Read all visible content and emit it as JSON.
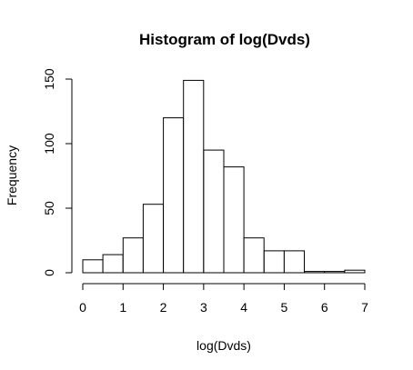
{
  "chart_data": {
    "type": "bar",
    "title": "Histogram of log(Dvds)",
    "xlabel": "log(Dvds)",
    "ylabel": "Frequency",
    "xlim": [
      0,
      7
    ],
    "ylim": [
      0,
      150
    ],
    "bin_width": 0.5,
    "bins": [
      {
        "start": 0.0,
        "end": 0.5,
        "count": 10
      },
      {
        "start": 0.5,
        "end": 1.0,
        "count": 14
      },
      {
        "start": 1.0,
        "end": 1.5,
        "count": 27
      },
      {
        "start": 1.5,
        "end": 2.0,
        "count": 53
      },
      {
        "start": 2.0,
        "end": 2.5,
        "count": 120
      },
      {
        "start": 2.5,
        "end": 3.0,
        "count": 149
      },
      {
        "start": 3.0,
        "end": 3.5,
        "count": 95
      },
      {
        "start": 3.5,
        "end": 4.0,
        "count": 82
      },
      {
        "start": 4.0,
        "end": 4.5,
        "count": 27
      },
      {
        "start": 4.5,
        "end": 5.0,
        "count": 17
      },
      {
        "start": 5.0,
        "end": 5.5,
        "count": 17
      },
      {
        "start": 5.5,
        "end": 6.0,
        "count": 1
      },
      {
        "start": 6.0,
        "end": 6.5,
        "count": 1
      },
      {
        "start": 6.5,
        "end": 7.0,
        "count": 2
      }
    ],
    "x_ticks": [
      {
        "value": 0,
        "label": "0"
      },
      {
        "value": 1,
        "label": "1"
      },
      {
        "value": 2,
        "label": "2"
      },
      {
        "value": 3,
        "label": "3"
      },
      {
        "value": 4,
        "label": "4"
      },
      {
        "value": 5,
        "label": "5"
      },
      {
        "value": 6,
        "label": "6"
      },
      {
        "value": 7,
        "label": "7"
      }
    ],
    "y_ticks": [
      {
        "value": 0,
        "label": "0"
      },
      {
        "value": 50,
        "label": "50"
      },
      {
        "value": 100,
        "label": "100"
      },
      {
        "value": 150,
        "label": "150"
      }
    ],
    "grid": false,
    "legend": "none"
  }
}
